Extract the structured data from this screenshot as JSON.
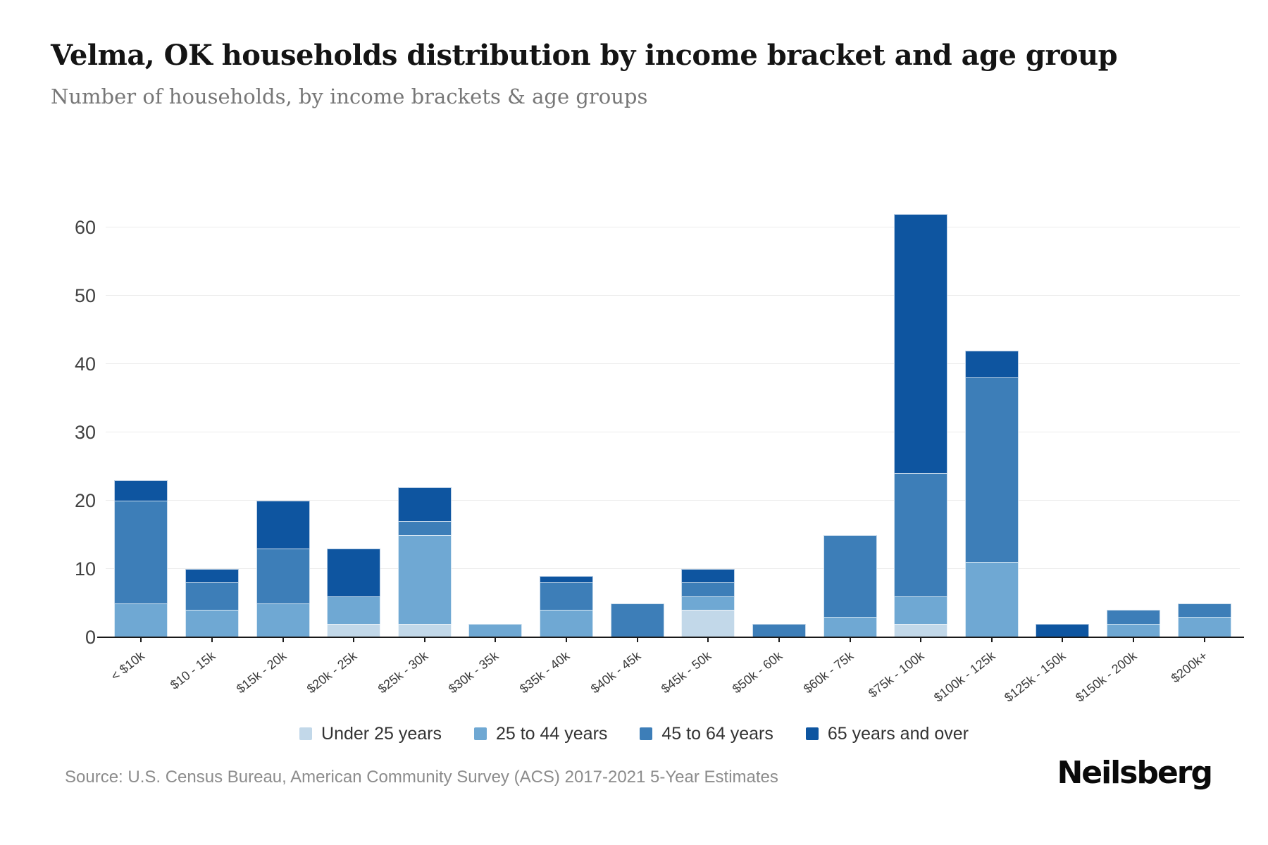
{
  "title": "Velma, OK households distribution by income bracket and age group",
  "subtitle": "Number of households, by income brackets & age groups",
  "source": "Source: U.S. Census Bureau, American Community Survey (ACS) 2017-2021 5-Year Estimates",
  "logo": "Neilsberg",
  "chart_data": {
    "type": "bar",
    "stacked": true,
    "title": "Velma, OK households distribution by income bracket and age group",
    "xlabel": "",
    "ylabel": "",
    "categories": [
      "< $10k",
      "$10 - 15k",
      "$15k - 20k",
      "$20k - 25k",
      "$25k - 30k",
      "$30k - 35k",
      "$35k - 40k",
      "$40k - 45k",
      "$45k - 50k",
      "$50k - 60k",
      "$60k - 75k",
      "$75k - 100k",
      "$100k - 125k",
      "$125k - 150k",
      "$150k - 200k",
      "$200k+"
    ],
    "series": [
      {
        "name": "Under 25 years",
        "color": "#c2d8e9",
        "values": [
          0,
          0,
          0,
          2,
          2,
          0,
          0,
          0,
          4,
          0,
          0,
          2,
          0,
          0,
          0,
          0
        ]
      },
      {
        "name": "25 to 44 years",
        "color": "#6fa8d3",
        "values": [
          5,
          4,
          5,
          4,
          13,
          2,
          4,
          0,
          2,
          0,
          3,
          4,
          11,
          0,
          2,
          3
        ]
      },
      {
        "name": "45 to 64 years",
        "color": "#3d7eb8",
        "values": [
          15,
          4,
          8,
          0,
          2,
          0,
          4,
          5,
          2,
          2,
          12,
          18,
          27,
          0,
          2,
          2
        ]
      },
      {
        "name": "65 years and over",
        "color": "#0e55a0",
        "values": [
          3,
          2,
          7,
          7,
          5,
          0,
          1,
          0,
          2,
          0,
          0,
          38,
          4,
          2,
          0,
          0
        ]
      }
    ],
    "totals": [
      23,
      10,
      20,
      13,
      22,
      2,
      9,
      5,
      10,
      2,
      15,
      62,
      42,
      2,
      4,
      5
    ],
    "yticks": [
      0,
      10,
      20,
      30,
      40,
      50,
      60
    ],
    "ylim": [
      0,
      62
    ],
    "grid": true,
    "legend_position": "bottom"
  }
}
